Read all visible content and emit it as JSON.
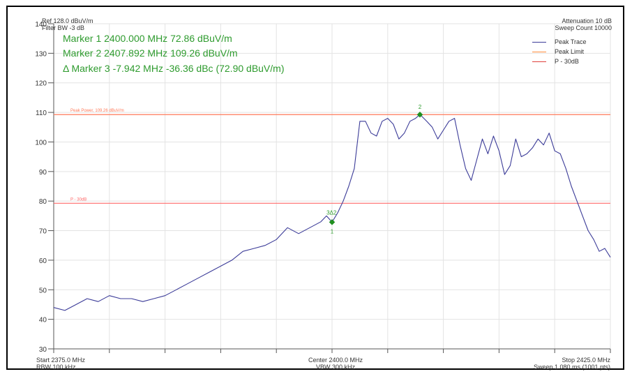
{
  "header": {
    "ref_level": "Ref 128.0 dBuV/m",
    "filter_bw": "Filter BW -3 dB",
    "attenuation": "Attenuation 10 dB",
    "sweep_count": "Sweep Count 10000"
  },
  "markers": {
    "m1": "Marker 1 2400.000 MHz 72.86 dBuV/m",
    "m2": "Marker 2 2407.892 MHz 109.26 dBuV/m",
    "m3": "Δ Marker 3 -7.942 MHz -36.36 dBc (72.90 dBuV/m)"
  },
  "legend": {
    "items": [
      {
        "label": "Peak Trace",
        "color": "#3b3b98"
      },
      {
        "label": "Peak Limit",
        "color": "#ff8c3a"
      },
      {
        "label": "P - 30dB",
        "color": "#e0403a"
      }
    ]
  },
  "footer": {
    "start": "Start 2375.0 MHz",
    "rbw": "RBW 100 kHz",
    "center": "Center 2400.0 MHz",
    "vbw": "VBW 300 kHz",
    "stop": "Stop 2425.0 MHz",
    "sweep": "Sweep 1.080 ms (1001 pts)"
  },
  "chart_data": {
    "type": "line",
    "xlim": [
      2375.0,
      2425.0
    ],
    "ylim": [
      30,
      140
    ],
    "yticks": [
      "140",
      "130",
      "120",
      "110",
      "100",
      "90",
      "80",
      "70",
      "60",
      "50",
      "40",
      "30"
    ],
    "grid": true,
    "legend_position": "top-right",
    "series": [
      {
        "name": "Peak Trace",
        "color": "#3b3b98",
        "x": [
          2375.0,
          2376.0,
          2377.0,
          2378.0,
          2379.0,
          2380.0,
          2381.0,
          2382.0,
          2383.0,
          2384.0,
          2385.0,
          2386.0,
          2387.0,
          2388.0,
          2389.0,
          2390.0,
          2391.0,
          2392.0,
          2393.0,
          2394.0,
          2395.0,
          2396.0,
          2397.0,
          2398.0,
          2399.0,
          2399.5,
          2400.0,
          2400.5,
          2401.0,
          2401.5,
          2402.0,
          2402.5,
          2403.0,
          2403.5,
          2404.0,
          2404.5,
          2405.0,
          2405.5,
          2406.0,
          2406.5,
          2407.0,
          2407.5,
          2407.9,
          2408.5,
          2409.0,
          2409.5,
          2410.0,
          2410.5,
          2411.0,
          2411.5,
          2412.0,
          2412.5,
          2413.0,
          2413.5,
          2414.0,
          2414.5,
          2415.0,
          2415.5,
          2416.0,
          2416.5,
          2417.0,
          2417.5,
          2418.0,
          2418.5,
          2419.0,
          2419.5,
          2420.0,
          2420.5,
          2421.0,
          2421.5,
          2422.0,
          2422.5,
          2423.0,
          2423.5,
          2424.0,
          2424.5,
          2425.0
        ],
        "values": [
          44,
          43,
          45,
          47,
          46,
          48,
          47,
          47,
          46,
          47,
          48,
          50,
          52,
          54,
          56,
          58,
          60,
          63,
          64,
          65,
          67,
          71,
          69,
          71,
          73,
          75,
          72.9,
          76,
          80,
          85,
          91,
          107,
          107,
          103,
          102,
          107,
          108,
          106,
          101,
          103,
          107,
          108,
          109.3,
          107,
          105,
          101,
          104,
          107,
          108,
          99,
          91,
          87,
          94,
          101,
          96,
          102,
          97,
          89,
          92,
          101,
          95,
          96,
          98,
          101,
          99,
          103,
          97,
          96,
          91,
          85,
          80,
          75,
          70,
          67,
          63,
          64,
          61
        ]
      }
    ],
    "limit_lines": [
      {
        "name": "Peak Limit",
        "label": "Peak Power, 109.26 dBuV/m",
        "y": 109.26,
        "color": "#ff7a5a"
      },
      {
        "name": "P - 30dB",
        "label": "P - 30dB",
        "y": 79.26,
        "color": "#ff6a6a"
      }
    ],
    "markers": [
      {
        "label": "1",
        "x": 2400.0,
        "y": 72.86
      },
      {
        "label": "2",
        "x": 2407.892,
        "y": 109.26
      },
      {
        "label": "3Δ2",
        "x": 2399.95,
        "y": 72.9
      }
    ]
  }
}
